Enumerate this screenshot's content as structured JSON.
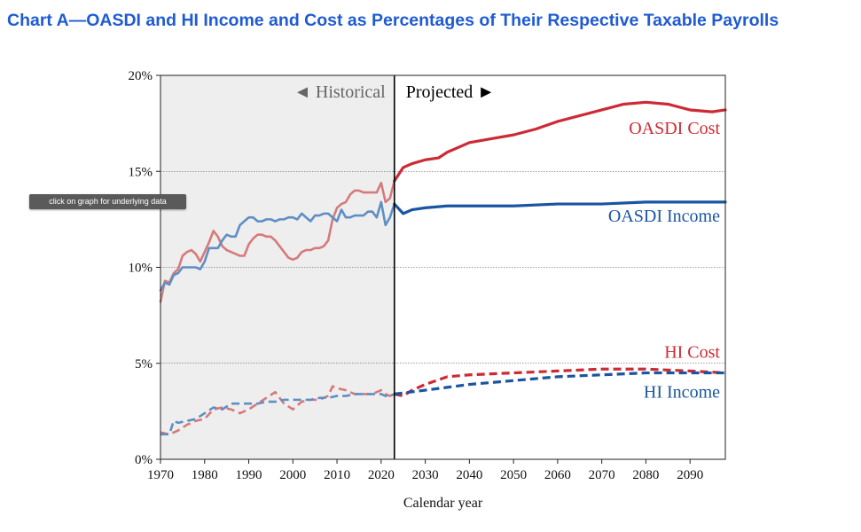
{
  "page": {
    "title": "Chart A—OASDI and HI Income and Cost as Percentages of Their Respective Taxable Payrolls",
    "tooltip": "click on graph for underlying data"
  },
  "colors": {
    "oasdi_cost_hist": "#d67a7a",
    "oasdi_cost_proj": "#cc2b35",
    "oasdi_income_hist": "#5e8fc4",
    "oasdi_income_proj": "#1a55a2",
    "historical_shade": "#eeeeee"
  },
  "chart_data": {
    "type": "line",
    "title": "",
    "xlabel": "Calendar year",
    "ylabel": "",
    "xlim": [
      1970,
      2098
    ],
    "ylim": [
      0,
      20
    ],
    "x_ticks": [
      1970,
      1980,
      1990,
      2000,
      2010,
      2020,
      2030,
      2040,
      2050,
      2060,
      2070,
      2080,
      2090
    ],
    "y_ticks": [
      0,
      5,
      10,
      15,
      20
    ],
    "y_tick_labels": [
      "0%",
      "5%",
      "10%",
      "15%",
      "20%"
    ],
    "grid": "horizontal dotted at 5%, 10%, 15%",
    "historical_end_year": 2023,
    "region_labels": {
      "historical": "◄ Historical",
      "projected": "Projected ►"
    },
    "series": [
      {
        "name": "OASDI Cost",
        "style": "solid",
        "x": [
          1970,
          1971,
          1972,
          1973,
          1974,
          1975,
          1976,
          1977,
          1978,
          1979,
          1980,
          1981,
          1982,
          1983,
          1984,
          1985,
          1986,
          1987,
          1988,
          1989,
          1990,
          1991,
          1992,
          1993,
          1994,
          1995,
          1996,
          1997,
          1998,
          1999,
          2000,
          2001,
          2002,
          2003,
          2004,
          2005,
          2006,
          2007,
          2008,
          2009,
          2010,
          2011,
          2012,
          2013,
          2014,
          2015,
          2016,
          2017,
          2018,
          2019,
          2020,
          2021,
          2022,
          2023,
          2025,
          2027,
          2030,
          2033,
          2035,
          2040,
          2045,
          2050,
          2055,
          2060,
          2065,
          2070,
          2075,
          2080,
          2085,
          2090,
          2095,
          2098
        ],
        "values": [
          8.2,
          9.3,
          9.2,
          9.7,
          9.9,
          10.6,
          10.8,
          10.9,
          10.7,
          10.3,
          10.8,
          11.3,
          11.9,
          11.6,
          11.1,
          10.9,
          10.8,
          10.7,
          10.6,
          10.6,
          11.2,
          11.5,
          11.7,
          11.7,
          11.6,
          11.6,
          11.4,
          11.1,
          10.8,
          10.5,
          10.4,
          10.5,
          10.8,
          10.9,
          10.9,
          11.0,
          11.0,
          11.1,
          11.4,
          12.5,
          13.1,
          13.3,
          13.4,
          13.8,
          14.0,
          14.0,
          13.9,
          13.9,
          13.9,
          13.9,
          14.4,
          13.4,
          13.6,
          14.5,
          15.2,
          15.4,
          15.6,
          15.7,
          16.0,
          16.5,
          16.7,
          16.9,
          17.2,
          17.6,
          17.9,
          18.2,
          18.5,
          18.6,
          18.5,
          18.2,
          18.1,
          18.2
        ]
      },
      {
        "name": "OASDI Income",
        "style": "solid",
        "x": [
          1970,
          1971,
          1972,
          1973,
          1974,
          1975,
          1976,
          1977,
          1978,
          1979,
          1980,
          1981,
          1982,
          1983,
          1984,
          1985,
          1986,
          1987,
          1988,
          1989,
          1990,
          1991,
          1992,
          1993,
          1994,
          1995,
          1996,
          1997,
          1998,
          1999,
          2000,
          2001,
          2002,
          2003,
          2004,
          2005,
          2006,
          2007,
          2008,
          2009,
          2010,
          2011,
          2012,
          2013,
          2014,
          2015,
          2016,
          2017,
          2018,
          2019,
          2020,
          2021,
          2022,
          2023,
          2025,
          2027,
          2030,
          2035,
          2040,
          2050,
          2060,
          2070,
          2080,
          2090,
          2098
        ],
        "values": [
          8.8,
          9.2,
          9.1,
          9.6,
          9.7,
          10.0,
          10.0,
          10.0,
          10.0,
          9.9,
          10.3,
          11.0,
          11.0,
          11.0,
          11.4,
          11.7,
          11.6,
          11.6,
          12.2,
          12.4,
          12.6,
          12.6,
          12.4,
          12.4,
          12.5,
          12.5,
          12.4,
          12.5,
          12.5,
          12.6,
          12.6,
          12.5,
          12.8,
          12.6,
          12.4,
          12.7,
          12.7,
          12.8,
          12.8,
          12.6,
          12.4,
          13.0,
          12.6,
          12.6,
          12.7,
          12.7,
          12.7,
          12.9,
          12.9,
          12.6,
          13.4,
          12.2,
          12.6,
          13.3,
          12.8,
          13.0,
          13.1,
          13.2,
          13.2,
          13.2,
          13.3,
          13.3,
          13.4,
          13.4,
          13.4
        ]
      },
      {
        "name": "HI Cost",
        "style": "dashed",
        "x": [
          1970,
          1972,
          1974,
          1976,
          1978,
          1980,
          1982,
          1984,
          1986,
          1988,
          1990,
          1992,
          1994,
          1996,
          1998,
          2000,
          2002,
          2004,
          2006,
          2008,
          2009,
          2010,
          2012,
          2014,
          2016,
          2018,
          2020,
          2021,
          2022,
          2023,
          2025,
          2027,
          2030,
          2035,
          2040,
          2050,
          2060,
          2070,
          2080,
          2090,
          2098
        ],
        "values": [
          1.4,
          1.3,
          1.5,
          1.8,
          2.0,
          2.1,
          2.6,
          2.7,
          2.6,
          2.4,
          2.6,
          2.9,
          3.2,
          3.5,
          2.9,
          2.6,
          3.0,
          3.1,
          3.1,
          3.3,
          3.8,
          3.7,
          3.6,
          3.4,
          3.4,
          3.4,
          3.6,
          3.4,
          3.3,
          3.4,
          3.3,
          3.6,
          3.9,
          4.3,
          4.4,
          4.5,
          4.6,
          4.7,
          4.7,
          4.6,
          4.5
        ]
      },
      {
        "name": "HI Income",
        "style": "dashed",
        "x": [
          1970,
          1972,
          1973,
          1974,
          1976,
          1978,
          1980,
          1982,
          1984,
          1986,
          1988,
          1990,
          1992,
          1994,
          1996,
          1998,
          2000,
          2002,
          2004,
          2006,
          2008,
          2010,
          2012,
          2014,
          2016,
          2018,
          2020,
          2021,
          2022,
          2023,
          2030,
          2040,
          2050,
          2060,
          2070,
          2080,
          2090,
          2098
        ],
        "values": [
          1.3,
          1.3,
          2.0,
          1.9,
          2.0,
          2.1,
          2.4,
          2.7,
          2.6,
          2.9,
          2.9,
          2.9,
          2.9,
          3.0,
          3.0,
          3.1,
          3.1,
          3.1,
          3.1,
          3.2,
          3.2,
          3.3,
          3.3,
          3.4,
          3.4,
          3.4,
          3.4,
          3.3,
          3.3,
          3.4,
          3.6,
          3.9,
          4.1,
          4.3,
          4.4,
          4.5,
          4.5,
          4.5
        ]
      }
    ]
  }
}
